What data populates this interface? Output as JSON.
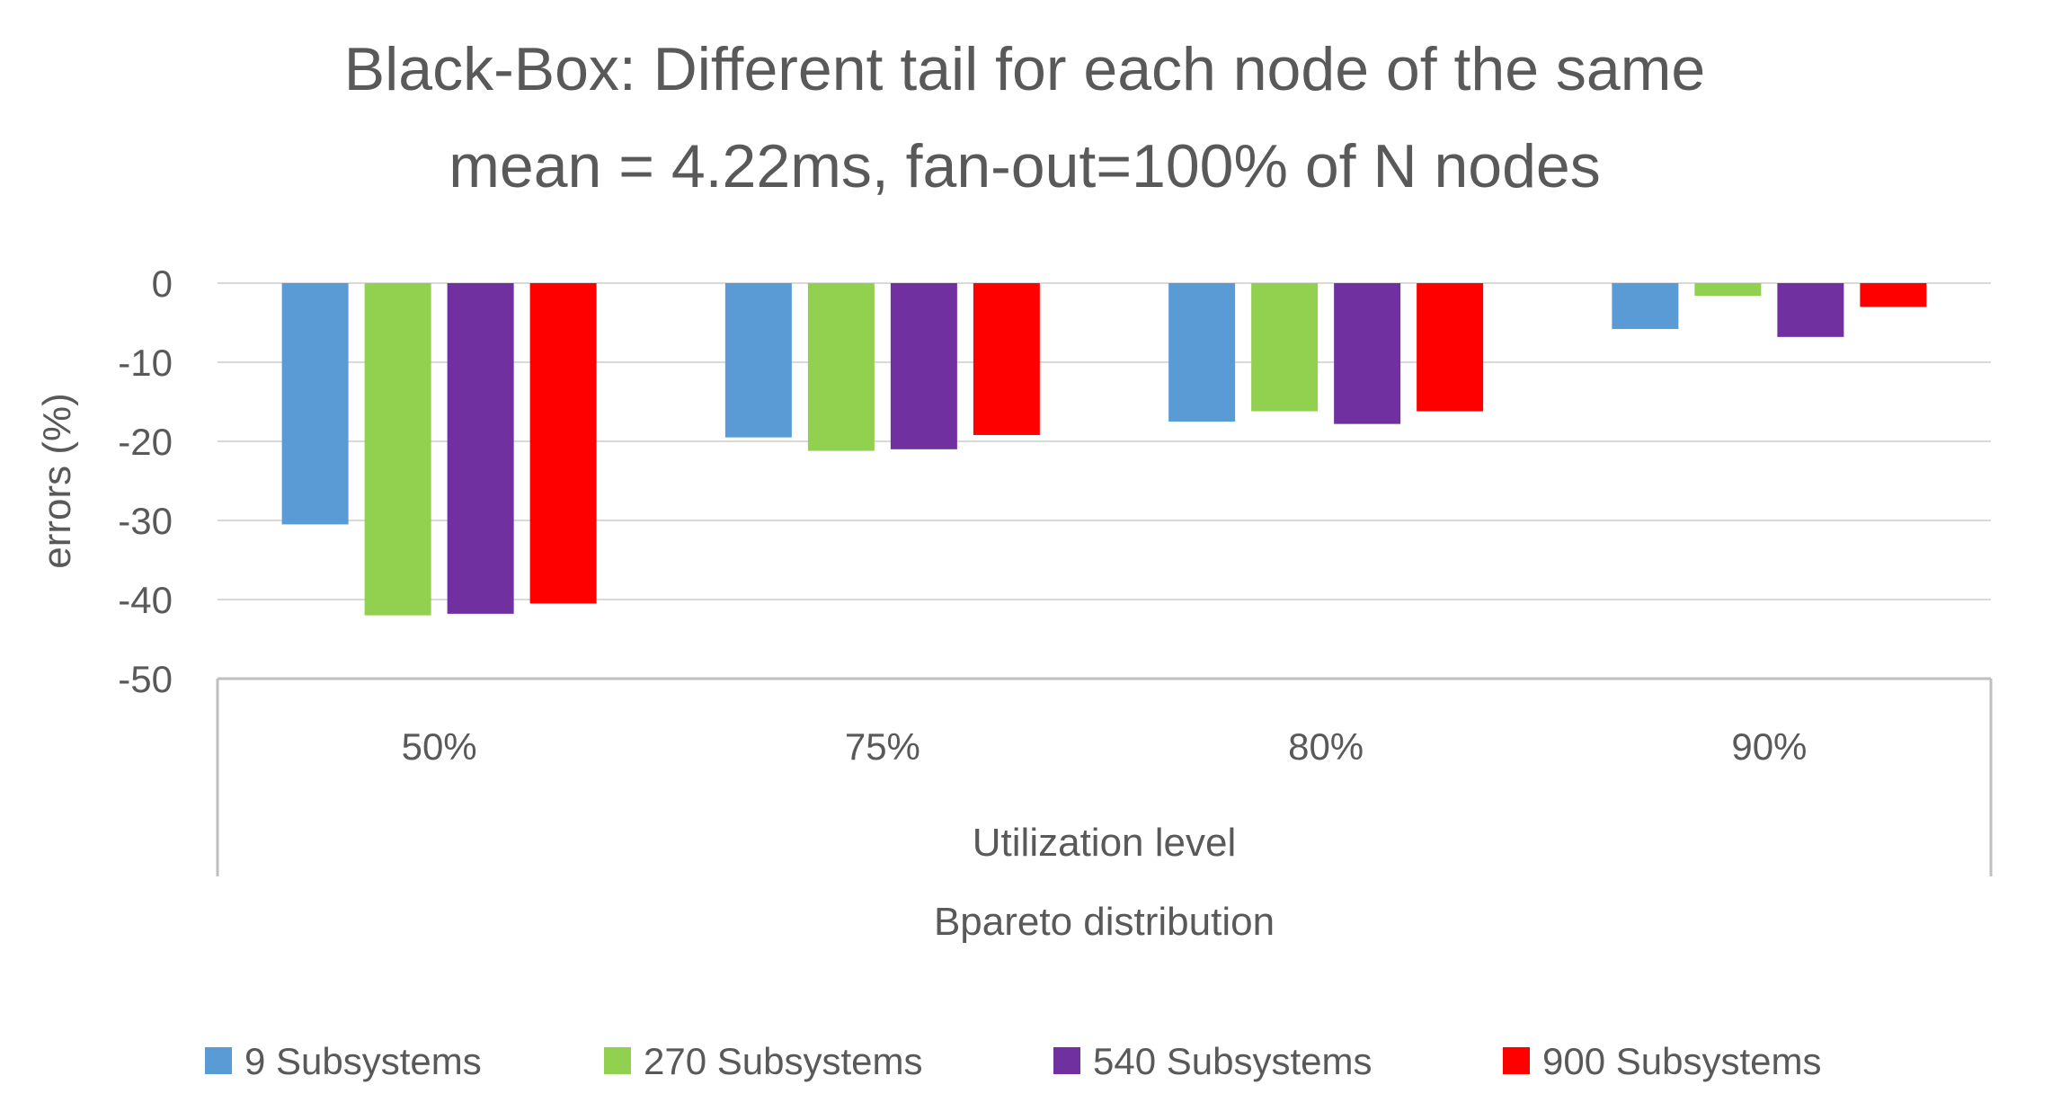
{
  "chart_data": {
    "type": "bar",
    "title_lines": [
      "Black-Box: Different tail for each node of the same",
      "mean = 4.22ms, fan-out=100% of N nodes"
    ],
    "ylabel": "errors (%)",
    "xlabel": "Utilization level",
    "xlabel2": "Bpareto distribution",
    "ylim": [
      -50,
      0
    ],
    "yticks": [
      0,
      -10,
      -20,
      -30,
      -40,
      -50
    ],
    "categories": [
      "50%",
      "75%",
      "80%",
      "90%"
    ],
    "series": [
      {
        "name": "9 Subsystems",
        "color": "#5B9BD5",
        "values": [
          -30.5,
          -19.5,
          -17.5,
          -5.8
        ]
      },
      {
        "name": "270 Subsystems",
        "color": "#92D050",
        "values": [
          -42,
          -21.2,
          -16.2,
          -1.6
        ]
      },
      {
        "name": "540 Subsystems",
        "color": "#7030A0",
        "values": [
          -41.8,
          -21,
          -17.8,
          -6.8
        ]
      },
      {
        "name": "900 Subsystems",
        "color": "#FF0000",
        "values": [
          -40.5,
          -19.2,
          -16.2,
          -3
        ]
      }
    ],
    "grid": true,
    "legend_position": "bottom"
  }
}
